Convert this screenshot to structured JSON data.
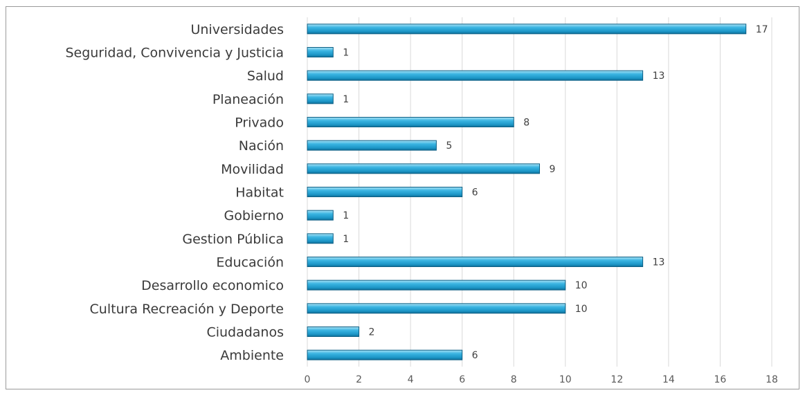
{
  "chart_data": {
    "type": "bar",
    "orientation": "horizontal",
    "categories": [
      "Universidades",
      "Seguridad, Convivencia y Justicia",
      "Salud",
      "Planeación",
      "Privado",
      "Nación",
      "Movilidad",
      "Habitat",
      "Gobierno",
      "Gestion Pública",
      "Educación",
      "Desarrollo economico",
      "Cultura Recreación y Deporte",
      "Ciudadanos",
      "Ambiente"
    ],
    "values": [
      17,
      1,
      13,
      1,
      8,
      5,
      9,
      6,
      1,
      1,
      13,
      10,
      10,
      2,
      6
    ],
    "title": "",
    "xlabel": "",
    "ylabel": "",
    "xlim": [
      0,
      18
    ],
    "xticks": [
      0,
      2,
      4,
      6,
      8,
      10,
      12,
      14,
      16,
      18
    ],
    "grid": "vertical",
    "legend": "none",
    "bar_color": "#2aa8d6",
    "data_labels": true
  }
}
